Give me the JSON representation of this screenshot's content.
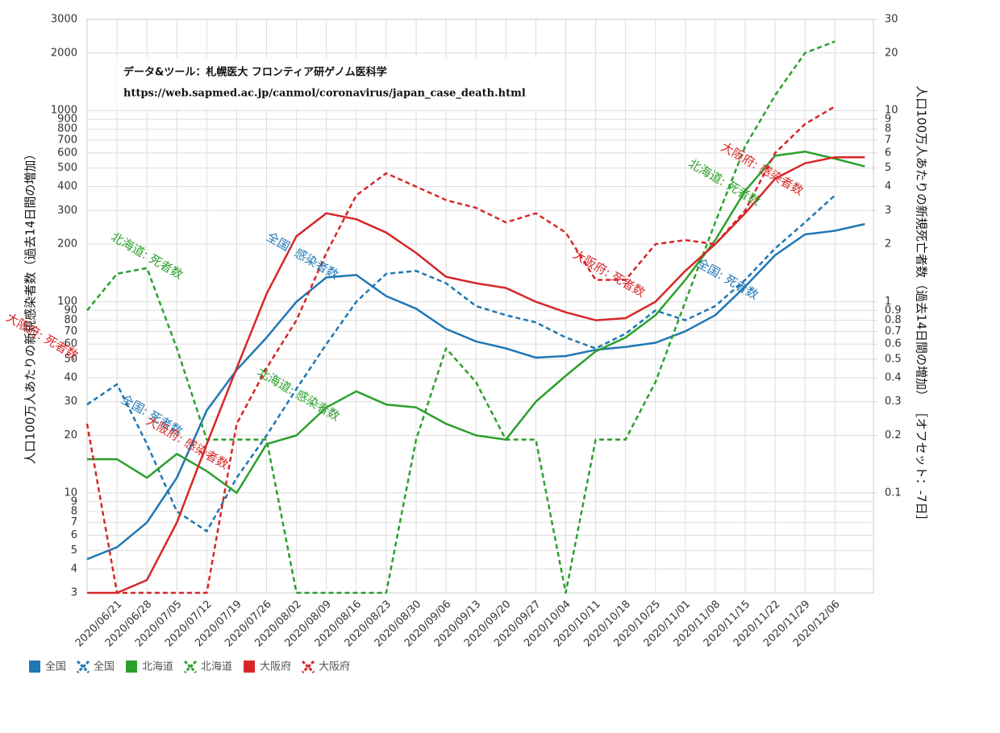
{
  "chart_data": {
    "type": "line",
    "source": [
      "データ&ツール：札幌医大 フロンティア研ゲノム医科学",
      "https://web.sapmed.ac.jp/canmol/coronavirus/japan_case_death.html"
    ],
    "ylabel": "人口100万人あたりの新規感染者数（過去14日間の増加）",
    "y2label": "人口100万人あたりの新規死亡者数（過去14日間の増加） ［オフセット：-7日］",
    "log_scale": true,
    "grid": true,
    "xlim": [
      "2020/06/14",
      "2020/12/15"
    ],
    "xticks": [
      "2020/06/21",
      "2020/06/28",
      "2020/07/05",
      "2020/07/12",
      "2020/07/19",
      "2020/07/26",
      "2020/08/02",
      "2020/08/09",
      "2020/08/16",
      "2020/08/23",
      "2020/08/30",
      "2020/09/06",
      "2020/09/13",
      "2020/09/20",
      "2020/09/27",
      "2020/10/04",
      "2020/10/11",
      "2020/10/18",
      "2020/10/25",
      "2020/11/01",
      "2020/11/08",
      "2020/11/15",
      "2020/11/22",
      "2020/11/29",
      "2020/12/06"
    ],
    "ylim": [
      3,
      3000
    ],
    "yticks": [
      3,
      4,
      5,
      6,
      7,
      8,
      9,
      10,
      20,
      30,
      40,
      50,
      60,
      70,
      80,
      90,
      100,
      200,
      300,
      400,
      500,
      600,
      700,
      800,
      900,
      1000,
      2000,
      3000
    ],
    "y2lim": [
      0.03,
      30
    ],
    "y2ticks": [
      0.1,
      0.2,
      0.3,
      0.4,
      0.5,
      0.6,
      0.7,
      0.8,
      0.9,
      1,
      2,
      3,
      4,
      5,
      6,
      7,
      8,
      9,
      10,
      20,
      30
    ],
    "x": [
      "2020/06/14",
      "2020/06/21",
      "2020/06/28",
      "2020/07/05",
      "2020/07/12",
      "2020/07/19",
      "2020/07/26",
      "2020/08/02",
      "2020/08/09",
      "2020/08/16",
      "2020/08/23",
      "2020/08/30",
      "2020/09/06",
      "2020/09/13",
      "2020/09/20",
      "2020/09/27",
      "2020/10/04",
      "2020/10/11",
      "2020/10/18",
      "2020/10/25",
      "2020/11/01",
      "2020/11/08",
      "2020/11/15",
      "2020/11/22",
      "2020/11/29",
      "2020/12/06",
      "2020/12/13"
    ],
    "series": [
      {
        "name": "全国",
        "color": "#1f77b4",
        "dashed": false,
        "values": [
          4.5,
          5.2,
          7,
          12,
          27,
          44,
          65,
          100,
          134,
          138,
          107,
          92,
          72,
          62,
          57,
          51,
          52,
          56,
          58,
          61,
          70,
          85,
          120,
          175,
          225,
          235,
          255
        ]
      },
      {
        "name": "全国",
        "color": "#1f77b4",
        "dashed": true,
        "axis": "y2",
        "values": [
          0.29,
          0.37,
          0.18,
          0.08,
          0.063,
          0.12,
          0.2,
          0.35,
          0.6,
          1.0,
          1.4,
          1.45,
          1.25,
          0.95,
          0.85,
          0.78,
          0.65,
          0.57,
          0.68,
          0.9,
          0.8,
          0.95,
          1.3,
          1.9,
          2.6,
          3.6,
          null
        ]
      },
      {
        "name": "北海道",
        "color": "#2ca02c",
        "dashed": false,
        "values": [
          15,
          15,
          12,
          16,
          13,
          10,
          18,
          20,
          28,
          34,
          29,
          28,
          23,
          20,
          19,
          30,
          41,
          55,
          65,
          85,
          130,
          210,
          380,
          580,
          610,
          560,
          510
        ]
      },
      {
        "name": "北海道",
        "color": "#2ca02c",
        "dashed": true,
        "axis": "y2",
        "values": [
          0.9,
          1.4,
          1.5,
          0.57,
          0.19,
          0.19,
          0.19,
          0.03,
          0.03,
          0.03,
          0.03,
          0.19,
          0.57,
          0.38,
          0.19,
          0.19,
          0.03,
          0.19,
          0.19,
          0.38,
          1.0,
          2.6,
          6.5,
          12,
          20,
          23,
          null
        ]
      },
      {
        "name": "大阪府",
        "color": "#d62728",
        "dashed": false,
        "values": [
          3,
          3,
          3.5,
          7,
          18,
          45,
          110,
          220,
          290,
          270,
          230,
          180,
          135,
          125,
          118,
          100,
          88,
          80,
          82,
          100,
          145,
          200,
          290,
          440,
          530,
          570,
          570
        ]
      },
      {
        "name": "大阪府",
        "color": "#d62728",
        "dashed": true,
        "axis": "y2",
        "values": [
          0.23,
          0.03,
          0.03,
          0.03,
          0.03,
          0.23,
          0.45,
          0.8,
          1.8,
          3.6,
          4.7,
          4.0,
          3.4,
          3.1,
          2.6,
          2.9,
          2.3,
          1.3,
          1.3,
          2.0,
          2.1,
          2.0,
          3.0,
          6.0,
          8.5,
          10.5,
          null
        ]
      }
    ],
    "annotations": [
      {
        "text": "北海道: 死者数",
        "color": "#2ca02c"
      },
      {
        "text": "大阪府: 死者数",
        "color": "#d62728"
      },
      {
        "text": "全国: 感染者数",
        "color": "#1f77b4"
      },
      {
        "text": "全国: 死者数",
        "color": "#1f77b4"
      },
      {
        "text": "大阪府: 感染者数",
        "color": "#d62728"
      },
      {
        "text": "北海道: 感染者数",
        "color": "#2ca02c"
      },
      {
        "text": "大阪府: 死者数",
        "color": "#d62728"
      },
      {
        "text": "全国: 死者数",
        "color": "#1f77b4"
      },
      {
        "text": "北海道: 死者数",
        "color": "#2ca02c"
      },
      {
        "text": "大阪府: 感染者数",
        "color": "#d62728"
      }
    ]
  }
}
